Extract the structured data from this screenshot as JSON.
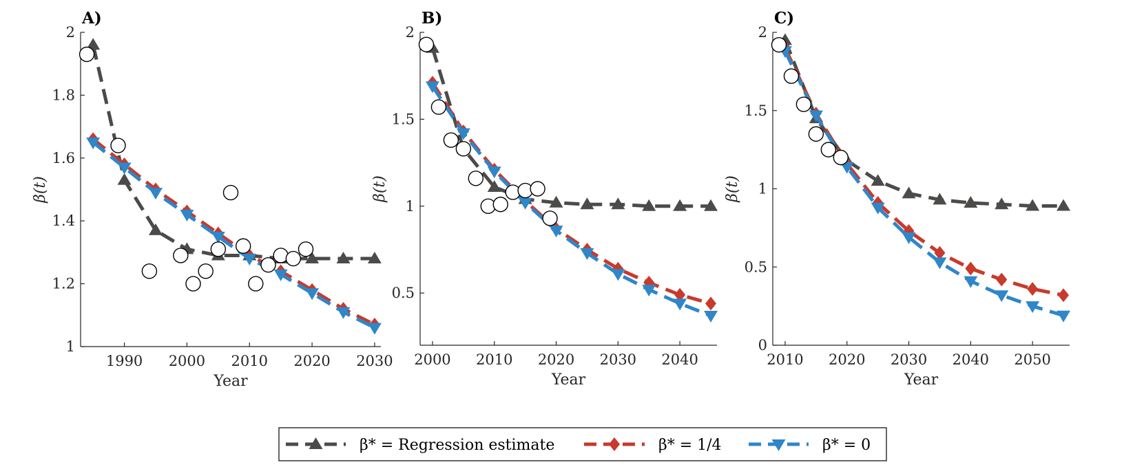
{
  "colors": {
    "regression": "#4d4b49",
    "quarter": "#c73a2c",
    "zero": "#2f86c8",
    "observed_fill": "#ffffff",
    "observed_stroke": "#000000"
  },
  "legend": {
    "placement": "bottom-center",
    "entries": [
      {
        "series": "regression",
        "label": "β* = Regression estimate"
      },
      {
        "series": "quarter",
        "label": "β* = 1/4"
      },
      {
        "series": "zero",
        "label": "β* = 0"
      }
    ]
  },
  "chart_data": [
    {
      "type": "line",
      "panel_label": "A)",
      "xlabel": "Year",
      "ylabel": "β(t)",
      "xlim": [
        1983,
        2031
      ],
      "ylim": [
        1,
        2
      ],
      "xticks": [
        1990,
        2000,
        2010,
        2020,
        2030
      ],
      "yticks": [
        1,
        1.2,
        1.4,
        1.6,
        1.8,
        2
      ],
      "ytick_labels": [
        "1",
        "1.2",
        "1.4",
        "1.6",
        "1.8",
        "2"
      ],
      "grid": false,
      "observed": {
        "x": [
          1984,
          1989,
          1994,
          1999,
          2001,
          2003,
          2005,
          2007,
          2009,
          2011,
          2013,
          2015,
          2017,
          2019
        ],
        "y": [
          1.93,
          1.64,
          1.24,
          1.29,
          1.2,
          1.24,
          1.31,
          1.49,
          1.32,
          1.2,
          1.26,
          1.29,
          1.28,
          1.31
        ]
      },
      "series": [
        {
          "key": "regression",
          "marker": "triangle-up",
          "x": [
            1985,
            1990,
            1995,
            2000,
            2005,
            2010,
            2015,
            2020,
            2025,
            2030
          ],
          "y": [
            1.96,
            1.53,
            1.37,
            1.31,
            1.29,
            1.29,
            1.28,
            1.28,
            1.28,
            1.28
          ]
        },
        {
          "key": "quarter",
          "marker": "diamond",
          "x": [
            1985,
            1990,
            1995,
            2000,
            2005,
            2010,
            2015,
            2020,
            2025,
            2030
          ],
          "y": [
            1.66,
            1.58,
            1.5,
            1.43,
            1.36,
            1.29,
            1.24,
            1.18,
            1.12,
            1.07
          ]
        },
        {
          "key": "zero",
          "marker": "triangle-down",
          "x": [
            1985,
            1990,
            1995,
            2000,
            2005,
            2010,
            2015,
            2020,
            2025,
            2030
          ],
          "y": [
            1.65,
            1.57,
            1.49,
            1.42,
            1.35,
            1.28,
            1.23,
            1.17,
            1.11,
            1.06
          ]
        }
      ]
    },
    {
      "type": "line",
      "panel_label": "B)",
      "xlabel": "Year",
      "ylabel": "β(t)",
      "xlim": [
        1998,
        2046
      ],
      "ylim": [
        0.2,
        2
      ],
      "xticks": [
        2000,
        2010,
        2020,
        2030,
        2040
      ],
      "yticks": [
        0.5,
        1,
        1.5,
        2
      ],
      "ytick_labels": [
        "0.5",
        "1",
        "1.5",
        "2"
      ],
      "grid": false,
      "observed": {
        "x": [
          1999,
          2001,
          2003,
          2005,
          2007,
          2009,
          2011,
          2013,
          2015,
          2017,
          2019
        ],
        "y": [
          1.93,
          1.57,
          1.38,
          1.33,
          1.16,
          1.0,
          1.01,
          1.08,
          1.09,
          1.1,
          0.93
        ]
      },
      "series": [
        {
          "key": "regression",
          "marker": "triangle-up",
          "x": [
            2000,
            2005,
            2010,
            2015,
            2020,
            2025,
            2030,
            2035,
            2040,
            2045
          ],
          "y": [
            1.91,
            1.33,
            1.11,
            1.04,
            1.02,
            1.01,
            1.01,
            1.0,
            1.0,
            1.0
          ]
        },
        {
          "key": "quarter",
          "marker": "diamond",
          "x": [
            2000,
            2005,
            2010,
            2015,
            2020,
            2025,
            2030,
            2035,
            2040,
            2045
          ],
          "y": [
            1.71,
            1.43,
            1.21,
            1.03,
            0.87,
            0.75,
            0.64,
            0.56,
            0.49,
            0.44
          ]
        },
        {
          "key": "zero",
          "marker": "triangle-down",
          "x": [
            2000,
            2005,
            2010,
            2015,
            2020,
            2025,
            2030,
            2035,
            2040,
            2045
          ],
          "y": [
            1.69,
            1.42,
            1.2,
            1.02,
            0.86,
            0.73,
            0.61,
            0.52,
            0.44,
            0.37
          ]
        }
      ]
    },
    {
      "type": "line",
      "panel_label": "C)",
      "xlabel": "Year",
      "ylabel": "β(t)",
      "xlim": [
        2008,
        2056
      ],
      "ylim": [
        0,
        2
      ],
      "xticks": [
        2010,
        2020,
        2030,
        2040,
        2050
      ],
      "yticks": [
        0,
        0.5,
        1,
        1.5,
        2
      ],
      "ytick_labels": [
        "0",
        "0.5",
        "1",
        "1.5",
        "2"
      ],
      "grid": false,
      "observed": {
        "x": [
          2009,
          2011,
          2013,
          2015,
          2017,
          2019
        ],
        "y": [
          1.92,
          1.72,
          1.54,
          1.35,
          1.25,
          1.2
        ]
      },
      "series": [
        {
          "key": "regression",
          "marker": "triangle-up",
          "x": [
            2010,
            2015,
            2020,
            2025,
            2030,
            2035,
            2040,
            2045,
            2050,
            2055
          ],
          "y": [
            1.95,
            1.45,
            1.18,
            1.05,
            0.97,
            0.93,
            0.91,
            0.9,
            0.89,
            0.89
          ]
        },
        {
          "key": "quarter",
          "marker": "diamond",
          "x": [
            2010,
            2015,
            2020,
            2025,
            2030,
            2035,
            2040,
            2045,
            2050,
            2055
          ],
          "y": [
            1.9,
            1.48,
            1.16,
            0.91,
            0.73,
            0.59,
            0.49,
            0.42,
            0.36,
            0.32
          ]
        },
        {
          "key": "zero",
          "marker": "triangle-down",
          "x": [
            2010,
            2015,
            2020,
            2025,
            2030,
            2035,
            2040,
            2045,
            2050,
            2055
          ],
          "y": [
            1.88,
            1.47,
            1.14,
            0.88,
            0.69,
            0.53,
            0.41,
            0.32,
            0.25,
            0.19
          ]
        }
      ]
    }
  ]
}
